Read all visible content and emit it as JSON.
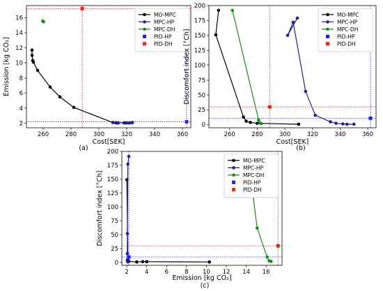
{
  "chart_data": [
    {
      "id": "a",
      "type": "scatter",
      "caption": "(a)",
      "xlabel": "Cost[SEK]",
      "ylabel": "Emission [kg CO₂]",
      "xlim": [
        248,
        366
      ],
      "ylim": [
        1.4,
        17.6
      ],
      "xticks": [
        260,
        280,
        300,
        320,
        340,
        360
      ],
      "yticks": [
        2,
        4,
        6,
        8,
        10,
        12,
        14,
        16
      ],
      "legend_position": "upper-right",
      "colors": {
        "MO-MPC": "#000000",
        "MPC-HP": "#1f1fa0",
        "MPC-DH": "#1a8a1a",
        "PID-HP": "#2020ff",
        "PID-DH": "#ff1a1a"
      },
      "series": [
        {
          "name": "MO-MPC",
          "mode": "line-marker",
          "x": [
            252,
            252,
            252.5,
            253,
            256,
            265,
            272,
            282,
            310,
            313,
            319,
            320,
            322,
            324
          ],
          "y": [
            11.7,
            11.0,
            10.3,
            10.1,
            9.0,
            6.8,
            5.5,
            4.1,
            2.1,
            2.05,
            2.05,
            2.05,
            2.05,
            2.1
          ]
        },
        {
          "name": "MPC-HP",
          "mode": "line-marker",
          "x": [
            310,
            312,
            314,
            318,
            320,
            322,
            324
          ],
          "y": [
            2.1,
            2.07,
            2.05,
            2.05,
            2.05,
            2.05,
            2.07
          ]
        },
        {
          "name": "MPC-DH",
          "mode": "line-marker",
          "x": [
            259.7,
            260,
            260.3
          ],
          "y": [
            15.55,
            15.5,
            15.45
          ]
        },
        {
          "name": "PID-HP",
          "mode": "square",
          "x": [
            363
          ],
          "y": [
            2.2
          ]
        },
        {
          "name": "PID-DH",
          "mode": "square",
          "x": [
            288
          ],
          "y": [
            17.2
          ]
        }
      ],
      "guides": [
        {
          "color": "PID-DH",
          "axis": "v",
          "value": 288
        },
        {
          "color": "PID-DH",
          "axis": "h",
          "value": 17.2
        },
        {
          "color": "PID-HP",
          "axis": "v",
          "value": 363
        },
        {
          "color": "PID-HP",
          "axis": "h",
          "value": 2.2
        }
      ]
    },
    {
      "id": "b",
      "type": "scatter",
      "caption": "(b)",
      "xlabel": "Cost[SEK]",
      "ylabel": "Discomfort index [°Ch]",
      "xlim": [
        245,
        366
      ],
      "ylim": [
        -5,
        200
      ],
      "xticks": [
        260,
        280,
        300,
        320,
        340,
        360
      ],
      "yticks": [
        0,
        25,
        50,
        75,
        100,
        125,
        150,
        175,
        200
      ],
      "legend_position": "upper-right",
      "colors": {
        "MO-MPC": "#000000",
        "MPC-HP": "#1f1fa0",
        "MPC-DH": "#1a8a1a",
        "PID-HP": "#2020ff",
        "PID-DH": "#ff1a1a"
      },
      "series": [
        {
          "name": "MO-MPC",
          "mode": "line-marker",
          "x": [
            252,
            250,
            270,
            272,
            275,
            280,
            310
          ],
          "y": [
            192,
            151,
            13,
            6,
            4,
            2.5,
            1
          ]
        },
        {
          "name": "MPC-HP",
          "mode": "line-marker",
          "x": [
            309,
            302,
            306,
            315,
            322,
            333,
            337,
            342,
            345,
            350
          ],
          "y": [
            179,
            150,
            172,
            56,
            16,
            5,
            2.5,
            1.5,
            1,
            1
          ]
        },
        {
          "name": "MPC-DH",
          "mode": "line-marker",
          "x": [
            262,
            281,
            282,
            283
          ],
          "y": [
            192,
            8,
            3,
            2
          ]
        },
        {
          "name": "PID-HP",
          "mode": "square",
          "x": [
            362
          ],
          "y": [
            11
          ]
        },
        {
          "name": "PID-DH",
          "mode": "square",
          "x": [
            289
          ],
          "y": [
            30
          ]
        }
      ],
      "guides": [
        {
          "color": "PID-DH",
          "axis": "v",
          "value": 289
        },
        {
          "color": "PID-DH",
          "axis": "h",
          "value": 30
        },
        {
          "color": "PID-HP",
          "axis": "v",
          "value": 362
        },
        {
          "color": "PID-HP",
          "axis": "h",
          "value": 11
        }
      ]
    },
    {
      "id": "c",
      "type": "scatter",
      "caption": "(c)",
      "xlabel": "Emission [kg CO₂]",
      "ylabel": "Discomfort index [°Ch]",
      "xlim": [
        1.5,
        17.6
      ],
      "ylim": [
        -5,
        200
      ],
      "xticks": [
        2,
        4,
        6,
        8,
        10,
        12,
        14,
        16
      ],
      "yticks": [
        0,
        25,
        50,
        75,
        100,
        125,
        150,
        175,
        200
      ],
      "legend_position": "upper-right",
      "colors": {
        "MO-MPC": "#000000",
        "MPC-HP": "#1f1fa0",
        "MPC-DH": "#1a8a1a",
        "PID-HP": "#2020ff",
        "PID-DH": "#ff1a1a"
      },
      "series": [
        {
          "name": "MO-MPC",
          "mode": "line-marker",
          "x": [
            2.0,
            2.1,
            2.2,
            3.0,
            3.6,
            4.0,
            10.3
          ],
          "y": [
            149,
            5,
            2,
            1,
            1.5,
            1.5,
            1
          ]
        },
        {
          "name": "MPC-HP",
          "mode": "line-marker",
          "x": [
            2.2,
            2.1,
            2.05,
            2.05,
            2.05,
            2.05,
            2.1,
            2.1
          ],
          "y": [
            191,
            177,
            52,
            16,
            5,
            3,
            2,
            1
          ]
        },
        {
          "name": "MPC-DH",
          "mode": "line-marker",
          "x": [
            14.6,
            15.1,
            16.1,
            16.3,
            16.5
          ],
          "y": [
            132,
            62,
            10,
            3,
            2
          ]
        },
        {
          "name": "PID-HP",
          "mode": "square",
          "x": [
            2.2
          ],
          "y": [
            10
          ]
        },
        {
          "name": "PID-DH",
          "mode": "square",
          "x": [
            17.2
          ],
          "y": [
            30
          ]
        }
      ],
      "guides": [
        {
          "color": "PID-DH",
          "axis": "v",
          "value": 17.2
        },
        {
          "color": "PID-DH",
          "axis": "h",
          "value": 30
        },
        {
          "color": "PID-HP",
          "axis": "v",
          "value": 2.2
        },
        {
          "color": "PID-HP",
          "axis": "h",
          "value": 10
        }
      ]
    }
  ]
}
